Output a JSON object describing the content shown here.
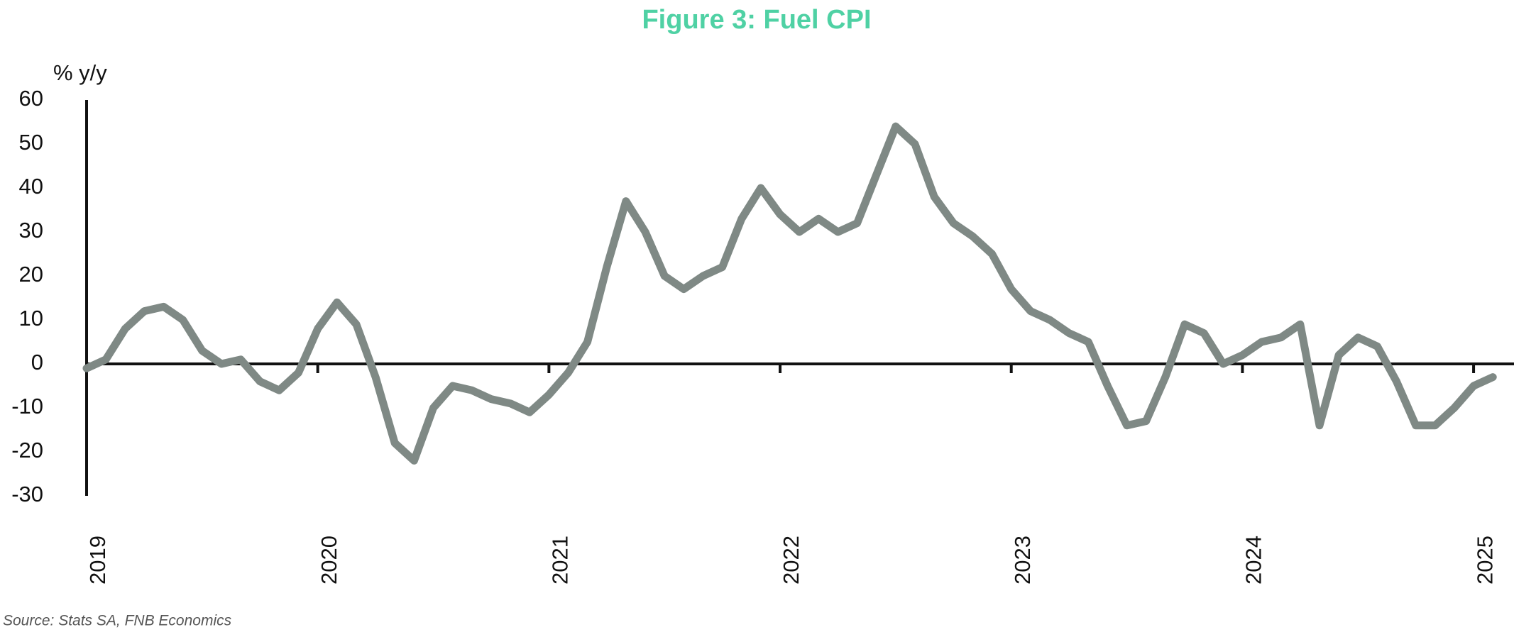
{
  "chart_data": {
    "type": "line",
    "title": "Figure 3: Fuel CPI",
    "y_axis_label": "% y/y",
    "source": "Source: Stats SA, FNB Economics",
    "categories": [
      "2019",
      null,
      null,
      null,
      null,
      null,
      null,
      null,
      null,
      null,
      null,
      null,
      "2020",
      null,
      null,
      null,
      null,
      null,
      null,
      null,
      null,
      null,
      null,
      null,
      "2021",
      null,
      null,
      null,
      null,
      null,
      null,
      null,
      null,
      null,
      null,
      null,
      "2022",
      null,
      null,
      null,
      null,
      null,
      null,
      null,
      null,
      null,
      null,
      null,
      "2023",
      null,
      null,
      null,
      null,
      null,
      null,
      null,
      null,
      null,
      null,
      null,
      "2024",
      null,
      null,
      null,
      null,
      null,
      null,
      null,
      null,
      null,
      null,
      null,
      "2025",
      null
    ],
    "series": [
      {
        "name": "Fuel CPI",
        "color": "#7f8985",
        "values": [
          -1,
          1,
          8,
          12,
          13,
          10,
          3,
          0,
          1,
          -4,
          -6,
          -2,
          8,
          14,
          9,
          -3,
          -18,
          -22,
          -10,
          -5,
          -6,
          -8,
          -9,
          -11,
          -7,
          -2,
          5,
          22,
          37,
          30,
          20,
          17,
          20,
          22,
          33,
          40,
          34,
          30,
          33,
          30,
          32,
          43,
          54,
          50,
          38,
          32,
          29,
          25,
          17,
          12,
          10,
          7,
          5,
          -5,
          -14,
          -13,
          -3,
          9,
          7,
          0,
          2,
          5,
          6,
          9,
          -14,
          2,
          6,
          4,
          -4,
          -14,
          -14,
          -10,
          -5,
          -3
        ]
      }
    ],
    "ylim": [
      -30,
      60
    ],
    "yticks": [
      -30,
      -20,
      -10,
      0,
      10,
      20,
      30,
      40,
      50,
      60
    ]
  }
}
